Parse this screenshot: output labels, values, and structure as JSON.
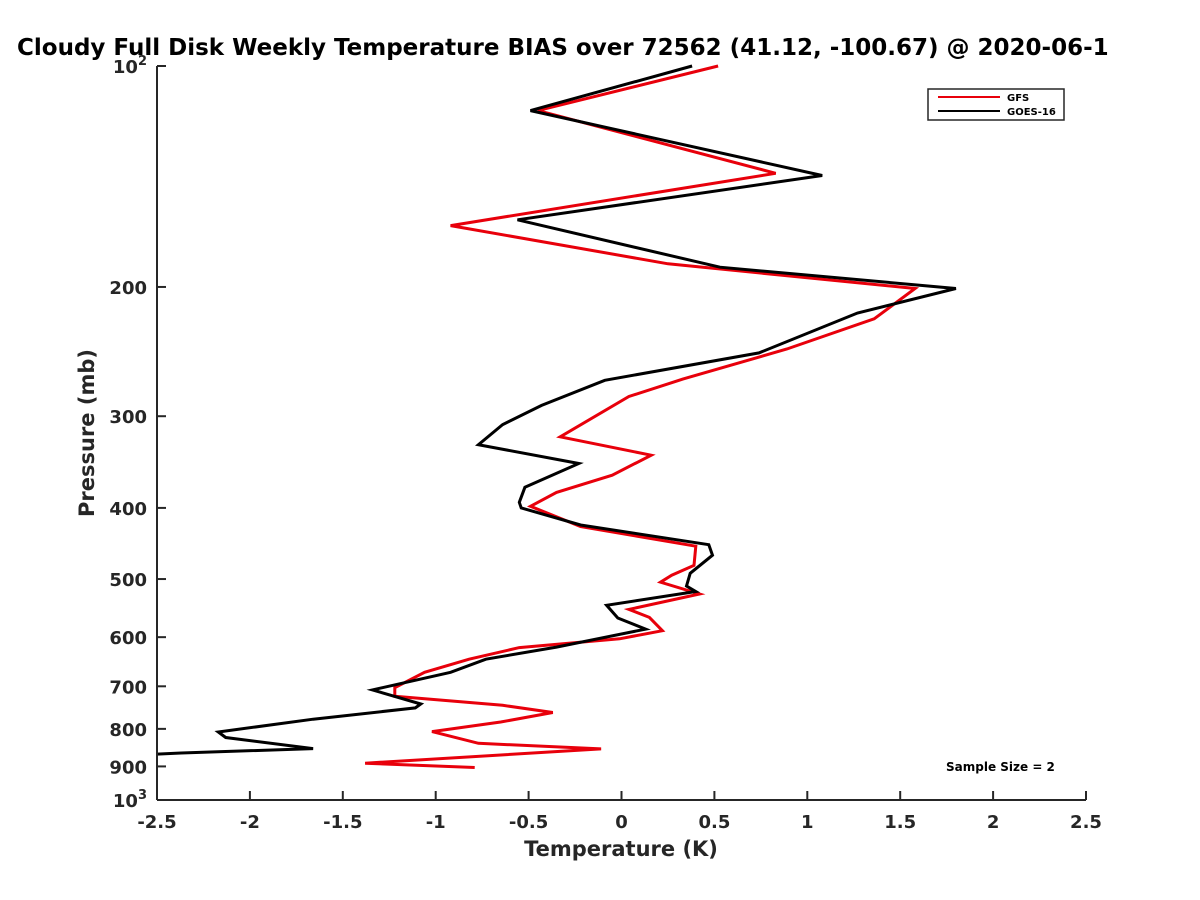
{
  "chart_data": {
    "type": "line",
    "title": "Cloudy Full Disk Weekly Temperature BIAS over 72562 (41.12, -100.67) @ 2020-06-1",
    "xlabel": "Temperature (K)",
    "ylabel": "Pressure (mb)",
    "xlim": [
      -2.5,
      2.5
    ],
    "ylim": [
      100,
      1000
    ],
    "y_scale": "log",
    "y_reversed": true,
    "grid": false,
    "legend_position": "top-right",
    "x_ticks": [
      {
        "value": -2.5,
        "label": "-2.5"
      },
      {
        "value": -2,
        "label": "-2"
      },
      {
        "value": -1.5,
        "label": "-1.5"
      },
      {
        "value": -1,
        "label": "-1"
      },
      {
        "value": -0.5,
        "label": "-0.5"
      },
      {
        "value": 0,
        "label": "0"
      },
      {
        "value": 0.5,
        "label": "0.5"
      },
      {
        "value": 1,
        "label": "1"
      },
      {
        "value": 1.5,
        "label": "1.5"
      },
      {
        "value": 2,
        "label": "2"
      },
      {
        "value": 2.5,
        "label": "2.5"
      }
    ],
    "y_ticks": [
      {
        "value": 100,
        "base": "10",
        "exp": "2"
      },
      {
        "value": 200,
        "base": "200",
        "exp": ""
      },
      {
        "value": 300,
        "base": "300",
        "exp": ""
      },
      {
        "value": 400,
        "base": "400",
        "exp": ""
      },
      {
        "value": 500,
        "base": "500",
        "exp": ""
      },
      {
        "value": 600,
        "base": "600",
        "exp": ""
      },
      {
        "value": 700,
        "base": "700",
        "exp": ""
      },
      {
        "value": 800,
        "base": "800",
        "exp": ""
      },
      {
        "value": 900,
        "base": "900",
        "exp": ""
      },
      {
        "value": 1000,
        "base": "10",
        "exp": "3"
      }
    ],
    "series": [
      {
        "name": "GFS",
        "color": "#e8000b",
        "points": [
          [
            0.52,
            100
          ],
          [
            -0.45,
            115
          ],
          [
            0.83,
            140
          ],
          [
            -0.92,
            165
          ],
          [
            0.25,
            186
          ],
          [
            1.58,
            201
          ],
          [
            1.36,
            221
          ],
          [
            0.89,
            243
          ],
          [
            0.33,
            267
          ],
          [
            0.04,
            282
          ],
          [
            -0.33,
            320
          ],
          [
            0.16,
            339
          ],
          [
            -0.05,
            361
          ],
          [
            -0.35,
            381
          ],
          [
            -0.49,
            398
          ],
          [
            -0.22,
            424
          ],
          [
            0.4,
            451
          ],
          [
            0.39,
            479
          ],
          [
            0.27,
            494
          ],
          [
            0.21,
            505
          ],
          [
            0.42,
            524
          ],
          [
            0.04,
            550
          ],
          [
            0.15,
            564
          ],
          [
            0.22,
            588
          ],
          [
            -0.01,
            603
          ],
          [
            -0.55,
            620
          ],
          [
            -0.82,
            643
          ],
          [
            -1.06,
            670
          ],
          [
            -1.22,
            703
          ],
          [
            -1.22,
            722
          ],
          [
            -0.64,
            743
          ],
          [
            -0.37,
            760
          ],
          [
            -0.65,
            783
          ],
          [
            -1.02,
            807
          ],
          [
            -0.77,
            837
          ],
          [
            -0.11,
            852
          ],
          [
            -1.38,
            891
          ],
          [
            -0.79,
            903
          ]
        ]
      },
      {
        "name": "GOES-16",
        "color": "#000000",
        "points": [
          [
            0.38,
            100
          ],
          [
            -0.49,
            115
          ],
          [
            1.08,
            141
          ],
          [
            -0.56,
            162
          ],
          [
            0.53,
            188
          ],
          [
            1.8,
            201
          ],
          [
            1.27,
            217
          ],
          [
            0.74,
            246
          ],
          [
            -0.09,
            268
          ],
          [
            -0.43,
            290
          ],
          [
            -0.64,
            308
          ],
          [
            -0.77,
            328
          ],
          [
            -0.23,
            348
          ],
          [
            -0.52,
            375
          ],
          [
            -0.55,
            393
          ],
          [
            -0.54,
            400
          ],
          [
            -0.22,
            422
          ],
          [
            0.47,
            449
          ],
          [
            0.49,
            464
          ],
          [
            0.37,
            491
          ],
          [
            0.35,
            511
          ],
          [
            0.4,
            520
          ],
          [
            -0.08,
            543
          ],
          [
            -0.02,
            565
          ],
          [
            0.13,
            585
          ],
          [
            -0.35,
            619
          ],
          [
            -0.73,
            643
          ],
          [
            -0.92,
            670
          ],
          [
            -1.34,
            708
          ],
          [
            -1.08,
            740
          ],
          [
            -1.11,
            749
          ],
          [
            -1.66,
            776
          ],
          [
            -2.17,
            808
          ],
          [
            -2.13,
            822
          ],
          [
            -1.66,
            851
          ],
          [
            -2.37,
            863
          ],
          [
            -2.5,
            866
          ]
        ]
      }
    ],
    "annotation": "Sample Size = 2"
  }
}
